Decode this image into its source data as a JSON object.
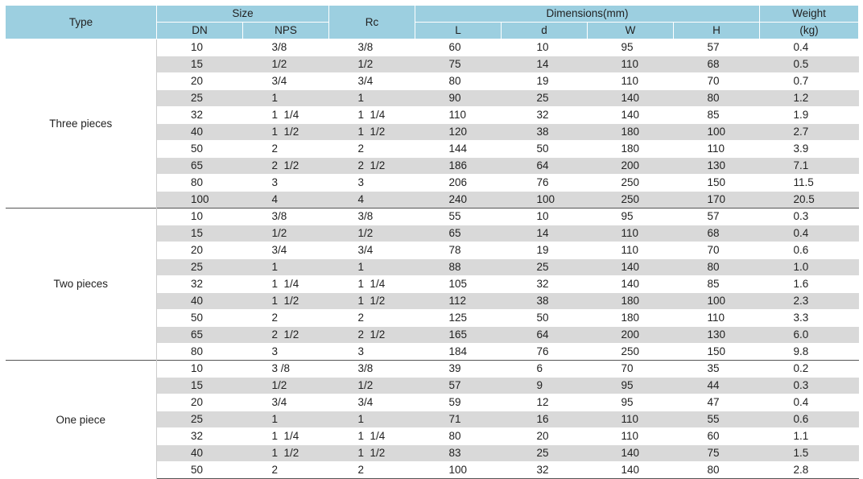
{
  "header": {
    "type": "Type",
    "size": "Size",
    "dn": "DN",
    "nps": "NPS",
    "rc": "Rc",
    "dimensions": "Dimensions(mm)",
    "l": "L",
    "d": "d",
    "w": "W",
    "h": "H",
    "weight": "Weight",
    "kg": "(kg)"
  },
  "groups": [
    {
      "type": "Three pieces",
      "rows": [
        [
          "10",
          "3/8",
          "3/8",
          "60",
          "10",
          "95",
          "57",
          "0.4"
        ],
        [
          "15",
          "1/2",
          "1/2",
          "75",
          "14",
          "110",
          "68",
          "0.5"
        ],
        [
          "20",
          "3/4",
          "3/4",
          "80",
          "19",
          "110",
          "70",
          "0.7"
        ],
        [
          "25",
          "1",
          "1",
          "90",
          "25",
          "140",
          "80",
          "1.2"
        ],
        [
          "32",
          "1  1/4",
          "1  1/4",
          "110",
          "32",
          "140",
          "85",
          "1.9"
        ],
        [
          "40",
          "1  1/2",
          "1  1/2",
          "120",
          "38",
          "180",
          "100",
          "2.7"
        ],
        [
          "50",
          "2",
          "2",
          "144",
          "50",
          "180",
          "110",
          "3.9"
        ],
        [
          "65",
          "2  1/2",
          "2  1/2",
          "186",
          "64",
          "200",
          "130",
          "7.1"
        ],
        [
          "80",
          "3",
          "3",
          "206",
          "76",
          "250",
          "150",
          "11.5"
        ],
        [
          "100",
          "4",
          "4",
          "240",
          "100",
          "250",
          "170",
          "20.5"
        ]
      ]
    },
    {
      "type": "Two pieces",
      "rows": [
        [
          "10",
          "3/8",
          "3/8",
          "55",
          "10",
          "95",
          "57",
          "0.3"
        ],
        [
          "15",
          "1/2",
          "1/2",
          "65",
          "14",
          "110",
          "68",
          "0.4"
        ],
        [
          "20",
          "3/4",
          "3/4",
          "78",
          "19",
          "110",
          "70",
          "0.6"
        ],
        [
          "25",
          "1",
          "1",
          "88",
          "25",
          "140",
          "80",
          "1.0"
        ],
        [
          "32",
          "1  1/4",
          "1  1/4",
          "105",
          "32",
          "140",
          "85",
          "1.6"
        ],
        [
          "40",
          "1  1/2",
          "1  1/2",
          "112",
          "38",
          "180",
          "100",
          "2.3"
        ],
        [
          "50",
          "2",
          "2",
          "125",
          "50",
          "180",
          "110",
          "3.3"
        ],
        [
          "65",
          "2  1/2",
          "2  1/2",
          "165",
          "64",
          "200",
          "130",
          "6.0"
        ],
        [
          "80",
          "3",
          "3",
          "184",
          "76",
          "250",
          "150",
          "9.8"
        ]
      ]
    },
    {
      "type": "One piece",
      "rows": [
        [
          "10",
          "3 /8",
          "3/8",
          "39",
          "6",
          "70",
          "35",
          "0.2"
        ],
        [
          "15",
          "1/2",
          "1/2",
          "57",
          "9",
          "95",
          "44",
          "0.3"
        ],
        [
          "20",
          "3/4",
          "3/4",
          "59",
          "12",
          "95",
          "47",
          "0.4"
        ],
        [
          "25",
          "1",
          "1",
          "71",
          "16",
          "110",
          "55",
          "0.6"
        ],
        [
          "32",
          "1  1/4",
          "1  1/4",
          "80",
          "20",
          "110",
          "60",
          "1.1"
        ],
        [
          "40",
          "1  1/2",
          "1  1/2",
          "83",
          "25",
          "140",
          "75",
          "1.5"
        ],
        [
          "50",
          "2",
          "2",
          "100",
          "32",
          "140",
          "80",
          "2.8"
        ]
      ]
    }
  ]
}
